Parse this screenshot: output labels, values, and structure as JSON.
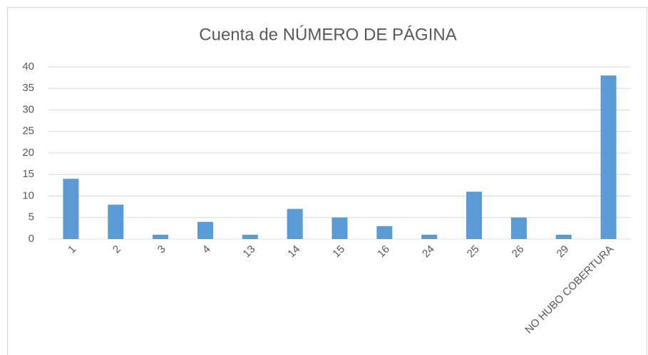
{
  "chart_data": {
    "type": "bar",
    "title": "Cuenta de NÚMERO DE PÁGINA",
    "categories": [
      "1",
      "2",
      "3",
      "4",
      "13",
      "14",
      "15",
      "16",
      "24",
      "25",
      "26",
      "29",
      "NO HUBO COBERTURA"
    ],
    "values": [
      14,
      8,
      1,
      4,
      1,
      7,
      5,
      3,
      1,
      11,
      5,
      1,
      38
    ],
    "color": "#5b9bd5",
    "ylim": [
      0,
      40
    ],
    "yticks": [
      0,
      5,
      10,
      15,
      20,
      25,
      30,
      35,
      40
    ],
    "grid": true
  }
}
